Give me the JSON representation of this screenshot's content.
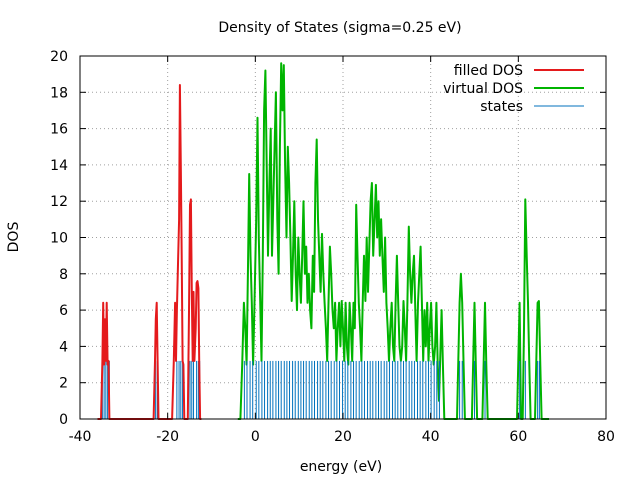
{
  "chart_data": {
    "type": "line",
    "title": "Density of States (sigma=0.25 eV)",
    "xlabel": "energy (eV)",
    "ylabel": "DOS",
    "xlim": [
      -40,
      80
    ],
    "ylim": [
      0,
      20
    ],
    "xticks": [
      -40,
      -20,
      0,
      20,
      40,
      60,
      80
    ],
    "yticks": [
      0,
      2,
      4,
      6,
      8,
      10,
      12,
      14,
      16,
      18,
      20
    ],
    "grid": true,
    "legend_position": "top-right",
    "colors": {
      "filled": "#e41a1c",
      "virtual": "#00b400",
      "states": "#0072bd"
    },
    "series": [
      {
        "name": "filled DOS",
        "points": [
          [
            -36,
            0
          ],
          [
            -35.2,
            0
          ],
          [
            -34.9,
            3.2
          ],
          [
            -34.7,
            6.4
          ],
          [
            -34.5,
            3
          ],
          [
            -34.3,
            5.5
          ],
          [
            -34.1,
            3.2
          ],
          [
            -33.9,
            6.4
          ],
          [
            -33.7,
            3
          ],
          [
            -33.5,
            3.2
          ],
          [
            -33.3,
            0
          ],
          [
            -32.5,
            0
          ],
          [
            -23.2,
            0
          ],
          [
            -22.9,
            3.2
          ],
          [
            -22.7,
            5.5
          ],
          [
            -22.5,
            6.4
          ],
          [
            -22.3,
            3.2
          ],
          [
            -22.1,
            0
          ],
          [
            -19,
            0
          ],
          [
            -18.6,
            3.2
          ],
          [
            -18.3,
            6.4
          ],
          [
            -18.1,
            3.2
          ],
          [
            -17.9,
            6
          ],
          [
            -17.6,
            9
          ],
          [
            -17.4,
            11
          ],
          [
            -17.2,
            18.4
          ],
          [
            -17,
            14
          ],
          [
            -16.8,
            9
          ],
          [
            -16.6,
            3.2
          ],
          [
            -16.4,
            3
          ],
          [
            -16.2,
            0
          ],
          [
            -15.4,
            0
          ],
          [
            -15.1,
            6.4
          ],
          [
            -14.9,
            11.8
          ],
          [
            -14.7,
            12.1
          ],
          [
            -14.5,
            7
          ],
          [
            -14.3,
            3.2
          ],
          [
            -14.1,
            7
          ],
          [
            -13.9,
            3.2
          ],
          [
            -13.6,
            5
          ],
          [
            -13.4,
            7.5
          ],
          [
            -13.2,
            7.6
          ],
          [
            -13,
            7.2
          ],
          [
            -12.8,
            3.2
          ],
          [
            -12.6,
            0
          ],
          [
            -12.3,
            0
          ]
        ]
      },
      {
        "name": "virtual DOS",
        "points": [
          [
            -4,
            0
          ],
          [
            -3.4,
            0
          ],
          [
            -3,
            3
          ],
          [
            -2.6,
            6.4
          ],
          [
            -2.3,
            5
          ],
          [
            -2,
            3
          ],
          [
            -1.7,
            8
          ],
          [
            -1.4,
            13.5
          ],
          [
            -1.1,
            9
          ],
          [
            -0.8,
            6.4
          ],
          [
            -0.5,
            3
          ],
          [
            -0.2,
            6.4
          ],
          [
            0.2,
            11
          ],
          [
            0.5,
            16.6
          ],
          [
            0.8,
            10
          ],
          [
            1.1,
            6.5
          ],
          [
            1.4,
            3.2
          ],
          [
            1.7,
            9
          ],
          [
            2,
            17
          ],
          [
            2.3,
            19.2
          ],
          [
            2.6,
            14
          ],
          [
            2.9,
            9
          ],
          [
            3.2,
            13
          ],
          [
            3.5,
            16
          ],
          [
            3.8,
            9
          ],
          [
            4.1,
            12
          ],
          [
            4.4,
            15
          ],
          [
            4.7,
            18
          ],
          [
            5,
            11
          ],
          [
            5.3,
            8
          ],
          [
            5.6,
            15
          ],
          [
            5.9,
            19.6
          ],
          [
            6.2,
            17
          ],
          [
            6.5,
            19.5
          ],
          [
            6.8,
            14
          ],
          [
            7.1,
            10
          ],
          [
            7.4,
            15
          ],
          [
            7.7,
            13
          ],
          [
            8,
            10
          ],
          [
            8.3,
            6.5
          ],
          [
            8.6,
            9
          ],
          [
            8.9,
            12
          ],
          [
            9.2,
            8
          ],
          [
            9.5,
            6
          ],
          [
            9.8,
            10
          ],
          [
            10.1,
            8
          ],
          [
            10.4,
            6.4
          ],
          [
            10.7,
            9
          ],
          [
            11,
            12
          ],
          [
            11.3,
            8
          ],
          [
            11.6,
            9.5
          ],
          [
            11.9,
            6.4
          ],
          [
            12.2,
            8
          ],
          [
            12.5,
            6
          ],
          [
            12.8,
            5
          ],
          [
            13.1,
            9
          ],
          [
            13.4,
            7
          ],
          [
            13.7,
            13
          ],
          [
            14,
            15.4
          ],
          [
            14.3,
            11
          ],
          [
            14.6,
            9
          ],
          [
            14.9,
            7
          ],
          [
            15.2,
            10.2
          ],
          [
            15.5,
            8
          ],
          [
            15.8,
            6.4
          ],
          [
            16.1,
            5
          ],
          [
            16.4,
            3.2
          ],
          [
            16.7,
            6.4
          ],
          [
            17,
            9.5
          ],
          [
            17.3,
            8
          ],
          [
            17.6,
            6
          ],
          [
            17.9,
            5
          ],
          [
            18.2,
            6.4
          ],
          [
            18.5,
            3.2
          ],
          [
            18.8,
            5
          ],
          [
            19.1,
            6.4
          ],
          [
            19.4,
            4
          ],
          [
            19.7,
            6.5
          ],
          [
            20,
            5
          ],
          [
            20.3,
            3.2
          ],
          [
            20.6,
            6.4
          ],
          [
            20.9,
            4
          ],
          [
            21.2,
            3
          ],
          [
            21.5,
            6.4
          ],
          [
            21.8,
            5
          ],
          [
            22.1,
            3.2
          ],
          [
            22.4,
            6.4
          ],
          [
            22.7,
            5
          ],
          [
            23,
            11.8
          ],
          [
            23.3,
            9
          ],
          [
            23.6,
            6.4
          ],
          [
            23.9,
            5
          ],
          [
            24.2,
            3.2
          ],
          [
            24.5,
            6.4
          ],
          [
            24.8,
            9
          ],
          [
            25.1,
            6.5
          ],
          [
            25.4,
            10
          ],
          [
            25.7,
            7
          ],
          [
            26,
            9.5
          ],
          [
            26.3,
            12
          ],
          [
            26.6,
            13
          ],
          [
            26.9,
            9
          ],
          [
            27.2,
            11
          ],
          [
            27.5,
            12.9
          ],
          [
            27.8,
            10
          ],
          [
            28.1,
            12
          ],
          [
            28.4,
            9
          ],
          [
            28.7,
            11
          ],
          [
            29,
            9
          ],
          [
            29.3,
            7
          ],
          [
            29.6,
            10
          ],
          [
            29.9,
            6.4
          ],
          [
            30.2,
            5
          ],
          [
            30.5,
            3.2
          ],
          [
            30.8,
            5
          ],
          [
            31.1,
            6.4
          ],
          [
            31.4,
            4
          ],
          [
            31.7,
            3.2
          ],
          [
            32,
            6.4
          ],
          [
            32.3,
            9
          ],
          [
            32.6,
            6.4
          ],
          [
            32.9,
            4
          ],
          [
            33.2,
            3.2
          ],
          [
            33.5,
            4
          ],
          [
            33.8,
            6.5
          ],
          [
            34.1,
            5
          ],
          [
            34.4,
            3.2
          ],
          [
            34.7,
            6.4
          ],
          [
            35,
            10.6
          ],
          [
            35.3,
            8
          ],
          [
            35.6,
            6.4
          ],
          [
            35.9,
            8
          ],
          [
            36.2,
            9
          ],
          [
            36.5,
            6
          ],
          [
            36.8,
            3.2
          ],
          [
            37.1,
            6.4
          ],
          [
            37.4,
            8
          ],
          [
            37.7,
            9.5
          ],
          [
            38,
            6.4
          ],
          [
            38.3,
            3.2
          ],
          [
            38.6,
            6
          ],
          [
            38.9,
            4
          ],
          [
            39.2,
            6.4
          ],
          [
            39.5,
            3.2
          ],
          [
            39.8,
            5
          ],
          [
            40.1,
            6.4
          ],
          [
            40.4,
            4
          ],
          [
            40.7,
            3
          ],
          [
            41,
            4
          ],
          [
            41.3,
            6.4
          ],
          [
            41.6,
            3
          ],
          [
            41.9,
            1
          ],
          [
            42.2,
            3.5
          ],
          [
            42.5,
            6
          ],
          [
            42.8,
            3
          ],
          [
            43.1,
            0
          ],
          [
            43.5,
            0
          ],
          [
            44,
            0
          ],
          [
            46,
            0
          ],
          [
            46.3,
            3.2
          ],
          [
            46.6,
            6.4
          ],
          [
            46.9,
            8
          ],
          [
            47.2,
            6.4
          ],
          [
            47.5,
            3.2
          ],
          [
            47.8,
            0
          ],
          [
            49.4,
            0
          ],
          [
            49.7,
            3.2
          ],
          [
            50,
            6.4
          ],
          [
            50.3,
            3
          ],
          [
            50.6,
            0
          ],
          [
            51.8,
            0
          ],
          [
            52.1,
            3.2
          ],
          [
            52.4,
            6.4
          ],
          [
            52.7,
            3
          ],
          [
            53,
            0
          ],
          [
            59.7,
            0
          ],
          [
            60,
            3.2
          ],
          [
            60.3,
            6.4
          ],
          [
            60.6,
            0
          ],
          [
            61,
            0
          ],
          [
            61.3,
            5
          ],
          [
            61.6,
            12.1
          ],
          [
            61.9,
            9
          ],
          [
            62.2,
            6.4
          ],
          [
            62.5,
            3
          ],
          [
            62.8,
            0
          ],
          [
            63.8,
            0
          ],
          [
            64.1,
            3.2
          ],
          [
            64.4,
            6.4
          ],
          [
            64.7,
            6.5
          ],
          [
            65,
            3
          ],
          [
            65.3,
            0
          ],
          [
            67,
            0
          ]
        ]
      },
      {
        "name": "states",
        "level": 3.2,
        "x": [
          -34.9,
          -34.5,
          -34.1,
          -33.7,
          -33.3,
          -22.8,
          -22.4,
          -17.9,
          -17.4,
          -17,
          -16.6,
          -14.9,
          -14.5,
          -14.1,
          -13.4,
          -13,
          -12.7,
          -2.5,
          -1.9,
          -1.2,
          -0.6,
          0.2,
          0.8,
          1.5,
          2.1,
          2.8,
          3.4,
          4,
          4.7,
          5.3,
          5.9,
          6.6,
          7.2,
          7.8,
          8.5,
          9.1,
          9.8,
          10.4,
          11,
          11.6,
          12.3,
          12.9,
          13.5,
          14.2,
          14.8,
          15.4,
          16.1,
          16.7,
          17.3,
          18,
          18.6,
          19.2,
          19.9,
          20.5,
          21.1,
          21.8,
          22.4,
          23,
          23.7,
          24.3,
          24.9,
          25.6,
          26.2,
          26.8,
          27.5,
          28.1,
          28.7,
          29.4,
          30,
          30.6,
          31.3,
          31.9,
          32.5,
          33.2,
          33.8,
          34.4,
          35.1,
          35.7,
          36.3,
          37,
          37.6,
          38.2,
          38.9,
          39.5,
          40.1,
          40.8,
          41.4,
          42,
          46.6,
          47.2,
          50,
          52.4,
          60.3,
          61.6,
          64.4,
          64.8
        ]
      }
    ]
  }
}
